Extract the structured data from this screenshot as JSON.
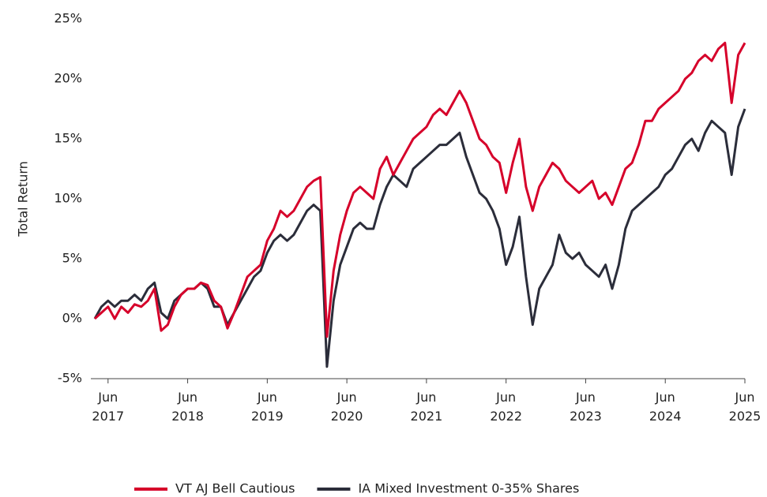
{
  "chart_data": {
    "type": "line",
    "y_label": "Total Return",
    "x": [
      "2017-04",
      "2017-05",
      "2017-06",
      "2017-07",
      "2017-08",
      "2017-09",
      "2017-10",
      "2017-11",
      "2017-12",
      "2018-01",
      "2018-02",
      "2018-03",
      "2018-04",
      "2018-05",
      "2018-06",
      "2018-07",
      "2018-08",
      "2018-09",
      "2018-10",
      "2018-11",
      "2018-12",
      "2019-01",
      "2019-02",
      "2019-03",
      "2019-04",
      "2019-05",
      "2019-06",
      "2019-07",
      "2019-08",
      "2019-09",
      "2019-10",
      "2019-11",
      "2019-12",
      "2020-01",
      "2020-02",
      "2020-03",
      "2020-04",
      "2020-05",
      "2020-06",
      "2020-07",
      "2020-08",
      "2020-09",
      "2020-10",
      "2020-11",
      "2020-12",
      "2021-01",
      "2021-02",
      "2021-03",
      "2021-04",
      "2021-05",
      "2021-06",
      "2021-07",
      "2021-08",
      "2021-09",
      "2021-10",
      "2021-11",
      "2021-12",
      "2022-01",
      "2022-02",
      "2022-03",
      "2022-04",
      "2022-05",
      "2022-06",
      "2022-07",
      "2022-08",
      "2022-09",
      "2022-10",
      "2022-11",
      "2022-12",
      "2023-01",
      "2023-02",
      "2023-03",
      "2023-04",
      "2023-05",
      "2023-06",
      "2023-07",
      "2023-08",
      "2023-09",
      "2023-10",
      "2023-11",
      "2023-12",
      "2024-01",
      "2024-02",
      "2024-03",
      "2024-04",
      "2024-05",
      "2024-06",
      "2024-07",
      "2024-08",
      "2024-09",
      "2024-10",
      "2024-11",
      "2024-12",
      "2025-01",
      "2025-02",
      "2025-03",
      "2025-04",
      "2025-05",
      "2025-06"
    ],
    "series": [
      {
        "name": "VT AJ Bell Cautious",
        "color": "#d6002a",
        "values": [
          0,
          0.5,
          1.0,
          0.0,
          1.0,
          0.5,
          1.2,
          1.0,
          1.5,
          2.5,
          -1.0,
          -0.5,
          1.0,
          2.0,
          2.5,
          2.5,
          3.0,
          2.8,
          1.5,
          1.0,
          -0.8,
          0.5,
          2.0,
          3.5,
          4.0,
          4.5,
          6.5,
          7.5,
          9.0,
          8.5,
          9.0,
          10.0,
          11.0,
          11.5,
          11.8,
          -1.5,
          4.0,
          7.0,
          9.0,
          10.5,
          11.0,
          10.5,
          10.0,
          12.5,
          13.5,
          12.0,
          13.0,
          14.0,
          15.0,
          15.5,
          16.0,
          17.0,
          17.5,
          17.0,
          18.0,
          19.0,
          18.0,
          16.5,
          15.0,
          14.5,
          13.5,
          13.0,
          10.5,
          13.0,
          15.0,
          11.0,
          9.0,
          11.0,
          12.0,
          13.0,
          12.5,
          11.5,
          11.0,
          10.5,
          11.0,
          11.5,
          10.0,
          10.5,
          9.5,
          11.0,
          12.5,
          13.0,
          14.5,
          16.5,
          16.5,
          17.5,
          18.0,
          18.5,
          19.0,
          20.0,
          20.5,
          21.5,
          22.0,
          21.5,
          22.5,
          23.0,
          18.0,
          22.0,
          23.0
        ]
      },
      {
        "name": "IA Mixed Investment 0-35% Shares",
        "color": "#2b2d3a",
        "values": [
          0,
          1.0,
          1.5,
          1.0,
          1.5,
          1.5,
          2.0,
          1.5,
          2.5,
          3.0,
          0.5,
          0.0,
          1.5,
          2.0,
          2.5,
          2.5,
          3.0,
          2.5,
          1.0,
          1.0,
          -0.5,
          0.5,
          1.5,
          2.5,
          3.5,
          4.0,
          5.5,
          6.5,
          7.0,
          6.5,
          7.0,
          8.0,
          9.0,
          9.5,
          9.0,
          -4.0,
          1.5,
          4.5,
          6.0,
          7.5,
          8.0,
          7.5,
          7.5,
          9.5,
          11.0,
          12.0,
          11.5,
          11.0,
          12.5,
          13.0,
          13.5,
          14.0,
          14.5,
          14.5,
          15.0,
          15.5,
          13.5,
          12.0,
          10.5,
          10.0,
          9.0,
          7.5,
          4.5,
          6.0,
          8.5,
          3.5,
          -0.5,
          2.5,
          3.5,
          4.5,
          7.0,
          5.5,
          5.0,
          5.5,
          4.5,
          4.0,
          3.5,
          4.5,
          2.5,
          4.5,
          7.5,
          9.0,
          9.5,
          10.0,
          10.5,
          11.0,
          12.0,
          12.5,
          13.5,
          14.5,
          15.0,
          14.0,
          15.5,
          16.5,
          16.0,
          15.5,
          12.0,
          16.0,
          17.5
        ]
      }
    ],
    "xlim": [
      "2017-04",
      "2025-06"
    ],
    "xticks": [
      {
        "value": "2017-06",
        "label": "Jun 2017"
      },
      {
        "value": "2018-06",
        "label": "Jun 2018"
      },
      {
        "value": "2019-06",
        "label": "Jun 2019"
      },
      {
        "value": "2020-06",
        "label": "Jun 2020"
      },
      {
        "value": "2021-06",
        "label": "Jun 2021"
      },
      {
        "value": "2022-06",
        "label": "Jun 2022"
      },
      {
        "value": "2023-06",
        "label": "Jun 2023"
      },
      {
        "value": "2024-06",
        "label": "Jun 2024"
      },
      {
        "value": "2025-06",
        "label": "Jun 2025"
      }
    ],
    "ylim": [
      -5,
      25
    ],
    "yticks": [
      {
        "value": -5,
        "label": "-5%"
      },
      {
        "value": 0,
        "label": "0%"
      },
      {
        "value": 5,
        "label": "5%"
      },
      {
        "value": 10,
        "label": "10%"
      },
      {
        "value": 15,
        "label": "15%"
      },
      {
        "value": 20,
        "label": "20%"
      },
      {
        "value": 25,
        "label": "25%"
      }
    ],
    "grid": false,
    "legend": "bottom"
  }
}
